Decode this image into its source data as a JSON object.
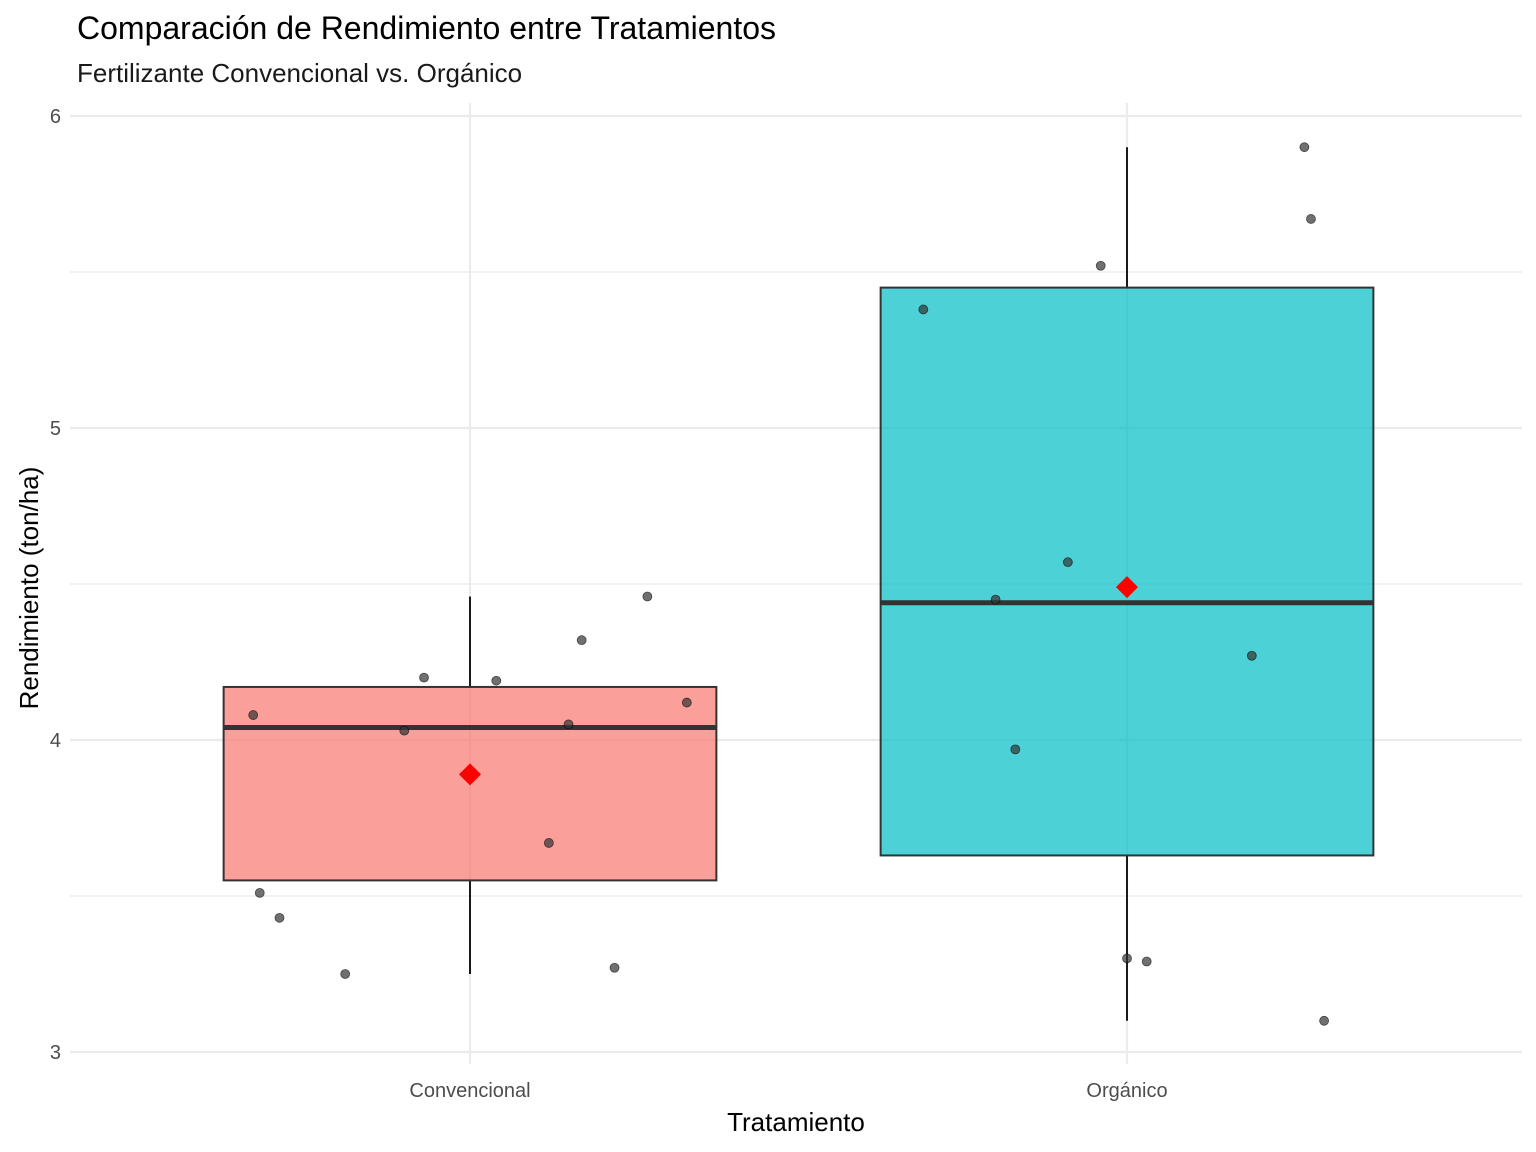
{
  "chart_data": {
    "type": "boxplot",
    "title": "Comparación de Rendimiento entre Tratamientos",
    "subtitle": "Fertilizante Convencional vs. Orgánico",
    "xlabel": "Tratamiento",
    "ylabel": "Rendimiento (ton/ha)",
    "ylim": [
      2.8,
      6.04
    ],
    "y_ticks": [
      3,
      4,
      5,
      6
    ],
    "grid": true,
    "categories": [
      "Convencional",
      "Orgánico"
    ],
    "boxes": [
      {
        "category": "Convencional",
        "fill": "#F8766D",
        "whisker_low": 3.25,
        "q1": 3.55,
        "median": 4.04,
        "q3": 4.17,
        "whisker_high": 4.46,
        "mean": 3.89,
        "points": [
          {
            "dx": 0.27,
            "y": 4.46
          },
          {
            "dx": 0.17,
            "y": 4.32
          },
          {
            "dx": -0.07,
            "y": 4.2
          },
          {
            "dx": 0.04,
            "y": 4.19
          },
          {
            "dx": 0.33,
            "y": 4.12
          },
          {
            "dx": -0.33,
            "y": 4.08
          },
          {
            "dx": 0.15,
            "y": 4.05
          },
          {
            "dx": -0.1,
            "y": 4.03
          },
          {
            "dx": 0.12,
            "y": 3.67
          },
          {
            "dx": -0.32,
            "y": 3.51
          },
          {
            "dx": -0.29,
            "y": 3.43
          },
          {
            "dx": 0.22,
            "y": 3.27
          },
          {
            "dx": -0.19,
            "y": 3.25
          }
        ]
      },
      {
        "category": "Orgánico",
        "fill": "#00BFC4",
        "whisker_low": 3.1,
        "q1": 3.63,
        "median": 4.44,
        "q3": 5.45,
        "whisker_high": 5.9,
        "mean": 4.49,
        "points": [
          {
            "dx": 0.27,
            "y": 5.9
          },
          {
            "dx": 0.28,
            "y": 5.67
          },
          {
            "dx": -0.04,
            "y": 5.52
          },
          {
            "dx": -0.31,
            "y": 5.38
          },
          {
            "dx": -0.09,
            "y": 4.57
          },
          {
            "dx": -0.2,
            "y": 4.45
          },
          {
            "dx": 0.19,
            "y": 4.27
          },
          {
            "dx": -0.17,
            "y": 3.97
          },
          {
            "dx": 0.0,
            "y": 3.3
          },
          {
            "dx": 0.03,
            "y": 3.29
          },
          {
            "dx": 0.3,
            "y": 3.1
          }
        ]
      }
    ],
    "mean_marker_color": "#FF0000",
    "point_color": "#333333"
  }
}
